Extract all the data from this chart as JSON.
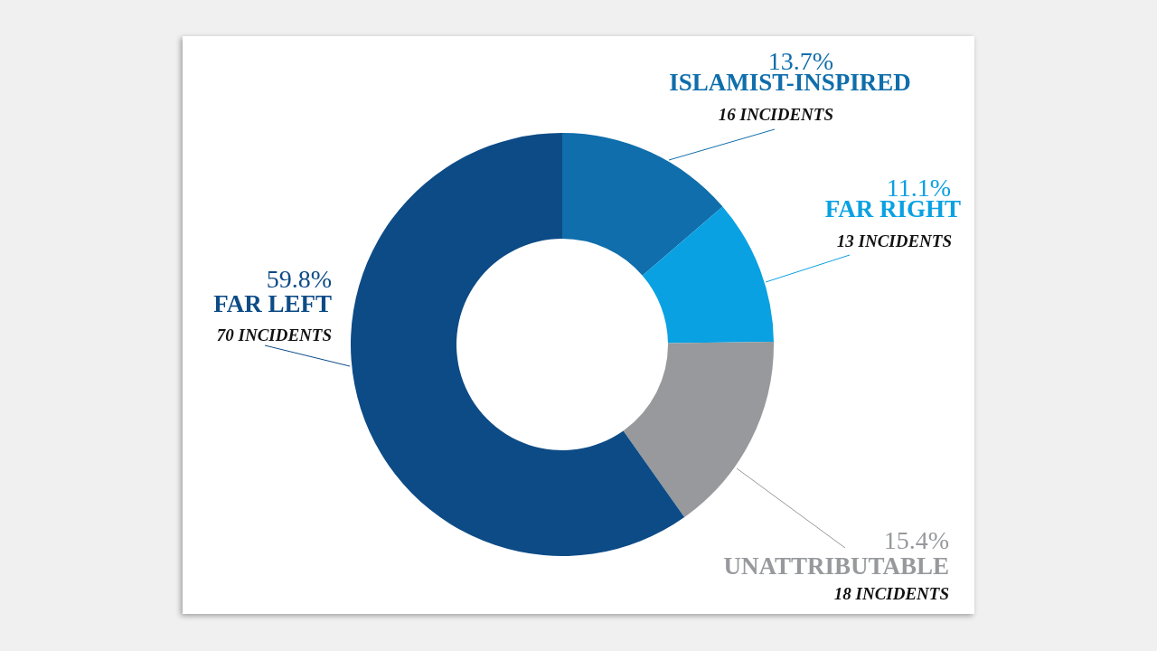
{
  "chart_data": {
    "type": "donut",
    "categories": [
      "ISLAMIST-INSPIRED",
      "FAR RIGHT",
      "UNATTRIBUTABLE",
      "FAR LEFT"
    ],
    "values": [
      13.7,
      11.1,
      15.4,
      59.8
    ],
    "colors": [
      "#0f6eab",
      "#0aa1e2",
      "#97999c",
      "#0d4b86"
    ],
    "value_labels": [
      "13.7%",
      "11.1%",
      "15.4%",
      "59.8%"
    ],
    "annotations": [
      "16 INCIDENTS",
      "13 INCIDENTS",
      "18 INCIDENTS",
      "70 INCIDENTS"
    ]
  }
}
